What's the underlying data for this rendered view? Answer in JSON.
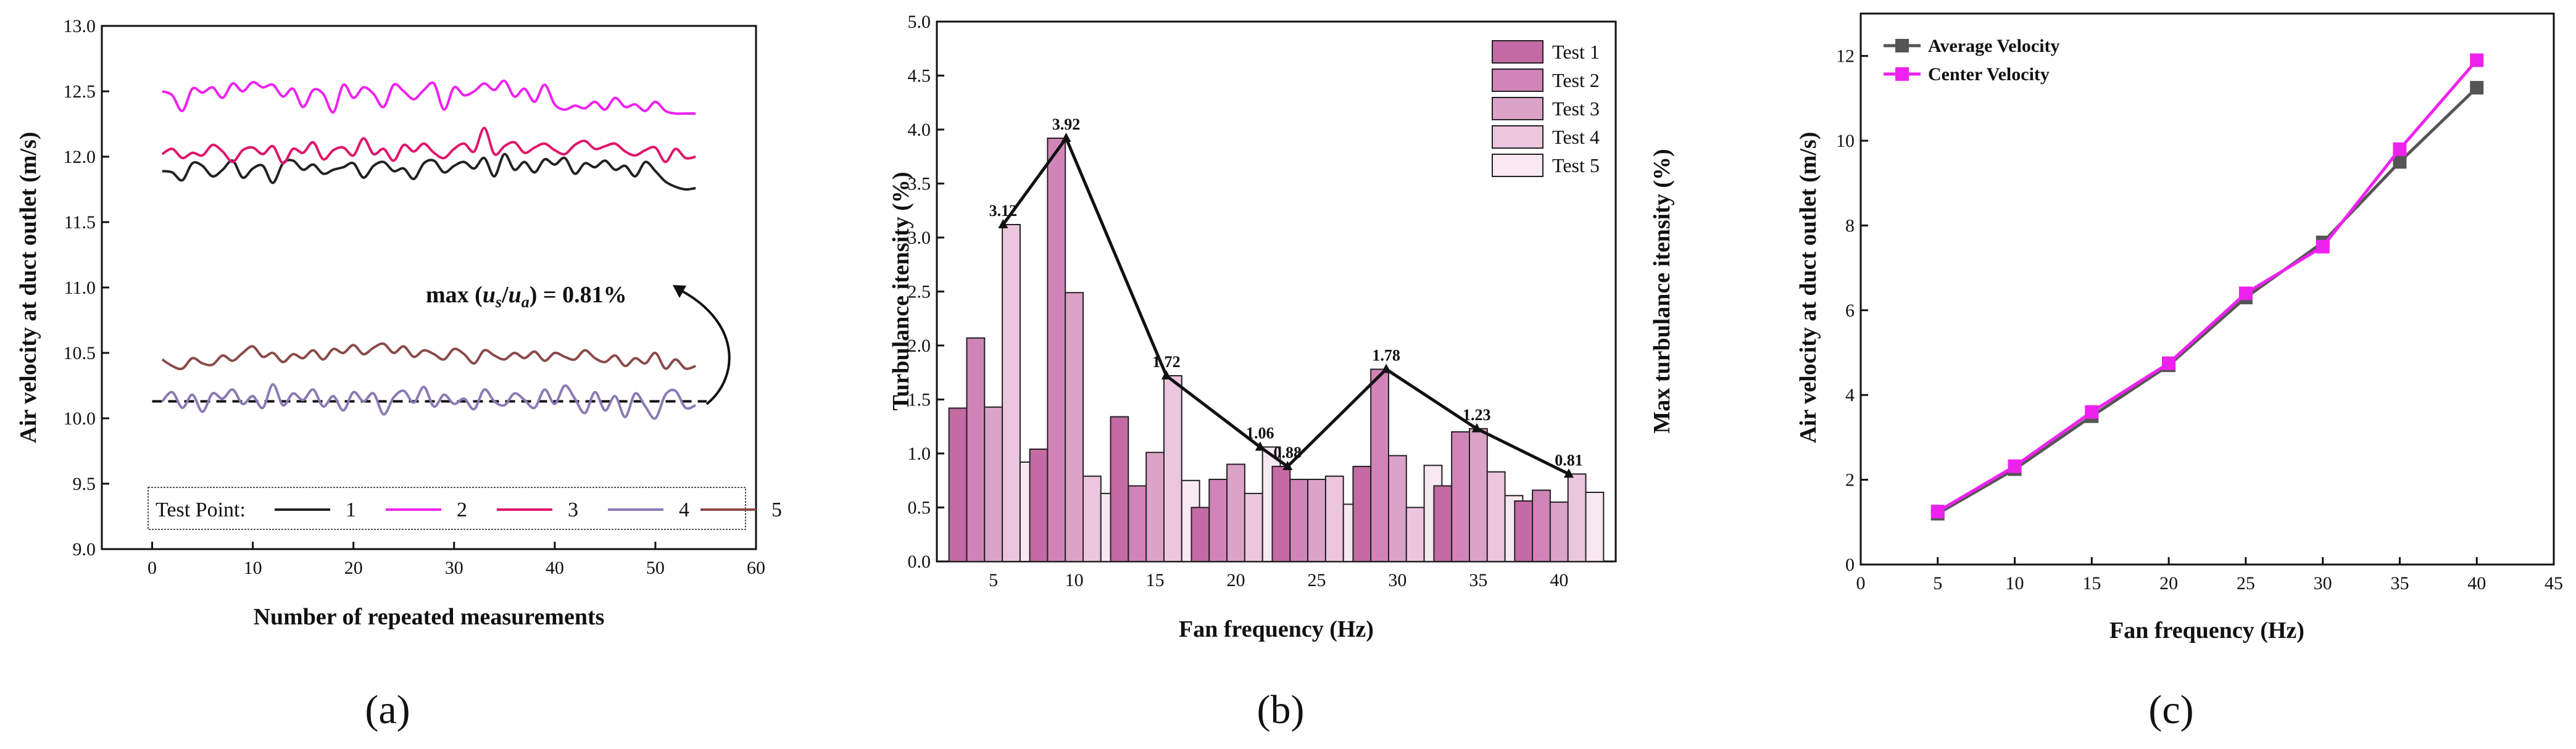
{
  "chart_data": [
    {
      "type": "line",
      "panel_label": "(a)",
      "xlabel": "Number of repeated measurements",
      "ylabel": "Air velocity at duct outlet (m/s)",
      "xlim": [
        -5,
        60
      ],
      "ylim": [
        9.0,
        13.0
      ],
      "xticks": [
        0,
        10,
        20,
        30,
        40,
        50,
        60
      ],
      "yticks": [
        9.0,
        9.5,
        10.0,
        10.5,
        11.0,
        11.5,
        12.0,
        12.5,
        13.0
      ],
      "legend_title": "Test Point:",
      "x": [
        1,
        2,
        3,
        4,
        5,
        6,
        7,
        8,
        9,
        10,
        11,
        12,
        13,
        14,
        15,
        16,
        17,
        18,
        19,
        20,
        21,
        22,
        23,
        24,
        25,
        26,
        27,
        28,
        29,
        30,
        31,
        32,
        33,
        34,
        35,
        36,
        37,
        38,
        39,
        40,
        41,
        42,
        43,
        44,
        45,
        46,
        47,
        48,
        49,
        50,
        51,
        52,
        53,
        54
      ],
      "series": [
        {
          "name": "1",
          "color": "#222222",
          "values": [
            11.89,
            11.88,
            11.82,
            11.95,
            11.93,
            11.85,
            11.9,
            11.97,
            11.84,
            11.91,
            11.93,
            11.8,
            11.95,
            11.97,
            11.9,
            11.94,
            11.87,
            11.9,
            11.92,
            11.95,
            11.84,
            11.93,
            11.96,
            11.89,
            11.91,
            11.83,
            11.95,
            11.97,
            11.88,
            11.93,
            11.96,
            11.91,
            11.99,
            11.85,
            12.02,
            11.9,
            11.96,
            11.88,
            11.98,
            11.94,
            11.99,
            11.87,
            11.95,
            11.92,
            11.97,
            11.9,
            11.93,
            11.85,
            11.96,
            11.89,
            11.81,
            11.77,
            11.75,
            11.76
          ]
        },
        {
          "name": "2",
          "color": "#ee22ee",
          "values": [
            12.5,
            12.47,
            12.35,
            12.52,
            12.49,
            12.53,
            12.45,
            12.56,
            12.5,
            12.57,
            12.53,
            12.55,
            12.46,
            12.52,
            12.38,
            12.51,
            12.48,
            12.34,
            12.55,
            12.45,
            12.53,
            12.48,
            12.38,
            12.55,
            12.5,
            12.44,
            12.51,
            12.56,
            12.36,
            12.53,
            12.47,
            12.5,
            12.56,
            12.51,
            12.58,
            12.46,
            12.52,
            12.42,
            12.55,
            12.4,
            12.36,
            12.39,
            12.37,
            12.42,
            12.36,
            12.45,
            12.38,
            12.4,
            12.35,
            12.42,
            12.35,
            12.33,
            12.33,
            12.33
          ]
        },
        {
          "name": "3",
          "color": "#e0156a",
          "values": [
            12.02,
            12.06,
            11.99,
            12.03,
            12.01,
            12.09,
            12.04,
            11.96,
            12.05,
            12.07,
            12.02,
            12.08,
            11.95,
            12.06,
            12.03,
            12.11,
            11.98,
            12.05,
            12.07,
            12.01,
            12.14,
            12.02,
            12.06,
            11.97,
            12.09,
            12.04,
            12.1,
            12.03,
            11.99,
            12.06,
            12.1,
            12.04,
            12.22,
            12.02,
            12.08,
            12.11,
            12.03,
            12.07,
            12.1,
            12.05,
            12.02,
            12.09,
            12.12,
            12.06,
            12.08,
            12.1,
            12.04,
            12.01,
            12.05,
            12.07,
            11.96,
            12.06,
            11.99,
            12.0
          ]
        },
        {
          "name": "4",
          "color": "#8a7ab3",
          "values": [
            10.13,
            10.2,
            10.08,
            10.18,
            10.05,
            10.19,
            10.15,
            10.22,
            10.11,
            10.17,
            10.08,
            10.26,
            10.1,
            10.19,
            10.14,
            10.22,
            10.09,
            10.17,
            10.06,
            10.2,
            10.13,
            10.19,
            10.03,
            10.16,
            10.21,
            10.12,
            10.24,
            10.09,
            10.18,
            10.11,
            10.15,
            10.07,
            10.22,
            10.13,
            10.1,
            10.19,
            10.14,
            10.08,
            10.22,
            10.11,
            10.25,
            10.15,
            10.04,
            10.2,
            10.06,
            10.17,
            10.01,
            10.19,
            10.09,
            10.0,
            10.18,
            10.21,
            10.08,
            10.1
          ]
        },
        {
          "name": "5",
          "color": "#8b4a4a",
          "values": [
            10.45,
            10.4,
            10.38,
            10.46,
            10.42,
            10.41,
            10.48,
            10.44,
            10.5,
            10.55,
            10.47,
            10.5,
            10.43,
            10.49,
            10.46,
            10.52,
            10.45,
            10.53,
            10.5,
            10.56,
            10.49,
            10.54,
            10.57,
            10.5,
            10.55,
            10.47,
            10.52,
            10.49,
            10.45,
            10.53,
            10.49,
            10.42,
            10.52,
            10.48,
            10.45,
            10.5,
            10.46,
            10.51,
            10.44,
            10.5,
            10.47,
            10.45,
            10.52,
            10.46,
            10.43,
            10.48,
            10.4,
            10.46,
            10.42,
            10.5,
            10.38,
            10.45,
            10.38,
            10.4
          ]
        }
      ],
      "reference_line": {
        "y": 10.13,
        "style": "dashed"
      },
      "annotation": {
        "prefix": "max (",
        "u1": "u",
        "s1": "s",
        "slash": "/",
        "u2": "u",
        "s2": "a",
        "suffix": ") = 0.81%"
      }
    },
    {
      "type": "bar",
      "panel_label": "(b)",
      "xlabel": "Fan frequency (Hz)",
      "ylabel": "Turbulance itensity (%)",
      "y2label": "Max turbulance itensity (%)",
      "xlim": [
        1.5,
        43.5
      ],
      "ylim": [
        0.0,
        5.0
      ],
      "xticks": [
        5,
        10,
        15,
        20,
        25,
        30,
        35,
        40
      ],
      "yticks": [
        0.0,
        0.5,
        1.0,
        1.5,
        2.0,
        2.5,
        3.0,
        3.5,
        4.0,
        4.5,
        5.0
      ],
      "categories": [
        5,
        10,
        15,
        20,
        25,
        30,
        35,
        40
      ],
      "series": [
        {
          "name": "Test 1",
          "color": "#c46aa4",
          "values": [
            1.42,
            1.04,
            1.34,
            0.5,
            0.88,
            0.88,
            0.7,
            0.56
          ]
        },
        {
          "name": "Test 2",
          "color": "#d184b8",
          "values": [
            2.07,
            3.92,
            0.7,
            0.76,
            0.76,
            1.78,
            1.2,
            0.66
          ]
        },
        {
          "name": "Test 3",
          "color": "#dca3c9",
          "values": [
            1.43,
            2.49,
            1.01,
            0.9,
            0.76,
            0.98,
            1.23,
            0.55
          ]
        },
        {
          "name": "Test 4",
          "color": "#ecc6df",
          "values": [
            3.12,
            0.79,
            1.72,
            0.63,
            0.79,
            0.5,
            0.83,
            0.81
          ]
        },
        {
          "name": "Test 5",
          "color": "#f7e8f1",
          "values": [
            0.92,
            0.63,
            0.75,
            1.06,
            0.53,
            0.89,
            0.61,
            0.64
          ]
        }
      ],
      "max_line": {
        "x": [
          5.6,
          9.5,
          15.7,
          21.5,
          23.2,
          29.3,
          34.9,
          40.6
        ],
        "values": [
          3.12,
          3.92,
          1.72,
          1.06,
          0.88,
          1.78,
          1.23,
          0.81
        ],
        "labels": [
          "3.12",
          "3.92",
          "1.72",
          "1.06",
          "0.88",
          "1.78",
          "1.23",
          "0.81"
        ]
      }
    },
    {
      "type": "line",
      "panel_label": "(c)",
      "xlabel": "Fan frequency (Hz)",
      "ylabel": "Air velocity at duct outlet (m/s)",
      "xlim": [
        0,
        45
      ],
      "ylim": [
        0,
        13
      ],
      "xticks": [
        0,
        5,
        10,
        15,
        20,
        25,
        30,
        35,
        40,
        45
      ],
      "yticks": [
        0,
        2,
        4,
        6,
        8,
        10,
        12
      ],
      "x": [
        5,
        10,
        15,
        20,
        25,
        30,
        35,
        40
      ],
      "series": [
        {
          "name": "Average Velocity",
          "color": "#555555",
          "marker": "square",
          "values": [
            1.2,
            2.25,
            3.5,
            4.7,
            6.3,
            7.6,
            9.5,
            11.25
          ]
        },
        {
          "name": "Center Velocity",
          "color": "#ee22ee",
          "marker": "square",
          "values": [
            1.25,
            2.32,
            3.6,
            4.75,
            6.4,
            7.5,
            9.8,
            11.9
          ]
        }
      ]
    }
  ]
}
